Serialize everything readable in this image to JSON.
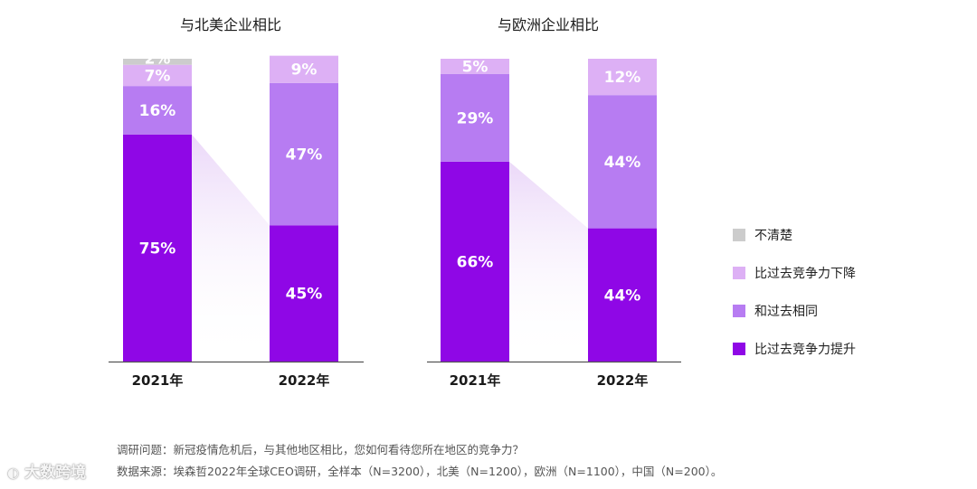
{
  "chart_data": [
    {
      "type": "bar",
      "stacked": true,
      "title": "与北美企业相比",
      "categories": [
        "2021年",
        "2022年"
      ],
      "series": [
        {
          "name": "比过去竞争力提升",
          "values": [
            75,
            45
          ],
          "labels": [
            "75%",
            "45%"
          ]
        },
        {
          "name": "和过去相同",
          "values": [
            16,
            47
          ],
          "labels": [
            "16%",
            "47%"
          ]
        },
        {
          "name": "比过去竞争力下降",
          "values": [
            7,
            9
          ],
          "labels": [
            "7%",
            "9%"
          ]
        },
        {
          "name": "不清楚",
          "values": [
            2,
            0
          ],
          "labels": [
            "2%",
            ""
          ]
        }
      ],
      "ylim": [
        0,
        100
      ]
    },
    {
      "type": "bar",
      "stacked": true,
      "title": "与欧洲企业相比",
      "categories": [
        "2021年",
        "2022年"
      ],
      "series": [
        {
          "name": "比过去竞争力提升",
          "values": [
            66,
            44
          ],
          "labels": [
            "66%",
            "44%"
          ]
        },
        {
          "name": "和过去相同",
          "values": [
            29,
            44
          ],
          "labels": [
            "29%",
            "44%"
          ]
        },
        {
          "name": "比过去竞争力下降",
          "values": [
            5,
            12
          ],
          "labels": [
            "5%",
            "12%"
          ]
        },
        {
          "name": "不清楚",
          "values": [
            0,
            0
          ],
          "labels": [
            "",
            ""
          ]
        }
      ],
      "ylim": [
        0,
        100
      ]
    }
  ],
  "legend": [
    {
      "label": "不清楚",
      "color": "#cccccc"
    },
    {
      "label": "比过去竞争力下降",
      "color": "#ddb0f5"
    },
    {
      "label": "和过去相同",
      "color": "#b77cf2"
    },
    {
      "label": "比过去竞争力提升",
      "color": "#8f07e6"
    }
  ],
  "colors": {
    "unclear": "#cccccc",
    "decline": "#ddb0f5",
    "same": "#b77cf2",
    "improve": "#8f07e6",
    "axis": "#555555"
  },
  "footnotes": {
    "question": "调研问题：新冠疫情危机后，与其他地区相比，您如何看待您所在地区的竞争力？",
    "source": "数据来源：埃森哲2022年全球CEO调研，全样本（N=3200），北美（N=1200），欧洲（N=1100），中国（N=200）。"
  },
  "watermark": {
    "icon": "◐",
    "text": "大数跨境"
  }
}
